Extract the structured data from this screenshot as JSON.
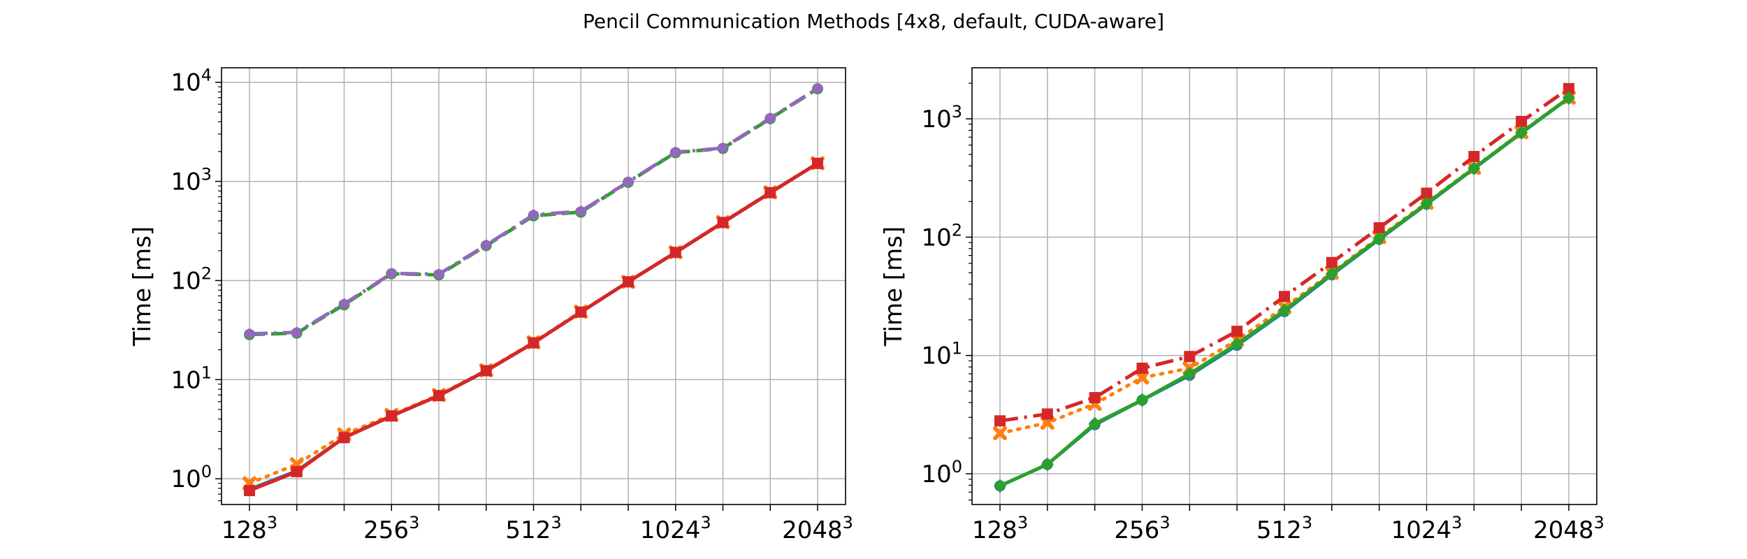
{
  "figure": {
    "title": "Pencil Communication Methods [4x8, default, CUDA-aware]"
  },
  "colors": {
    "blue": "#1f77b4",
    "orange": "#ff7f0e",
    "green": "#2ca02c",
    "red": "#d62728",
    "purple": "#9467bd",
    "grid": "#b0b0b0"
  },
  "chart_data": [
    {
      "type": "line",
      "title": "",
      "xlabel": "",
      "ylabel": "Time [ms]",
      "yscale": "log",
      "ylim": [
        0.55,
        14000
      ],
      "grid": true,
      "x_tick_labels": [
        {
          "base": "128",
          "exp": "3"
        },
        {
          "base": "256",
          "exp": "3"
        },
        {
          "base": "512",
          "exp": "3"
        },
        {
          "base": "1024",
          "exp": "3"
        },
        {
          "base": "2048",
          "exp": "3"
        }
      ],
      "y_tick_labels": [
        {
          "base": "10",
          "exp": "0"
        },
        {
          "base": "10",
          "exp": "1"
        },
        {
          "base": "10",
          "exp": "2"
        },
        {
          "base": "10",
          "exp": "3"
        },
        {
          "base": "10",
          "exp": "4"
        }
      ],
      "y_ticks": [
        1,
        10,
        100,
        1000,
        10000
      ],
      "x_ticks": [
        0,
        3,
        6,
        9,
        12
      ],
      "x": [
        0,
        1,
        2,
        3,
        4,
        5,
        6,
        7,
        8,
        9,
        10,
        11,
        12
      ],
      "series": [
        {
          "color": "blue",
          "dash": "solid",
          "marker": "circle",
          "values": [
            0.78,
            1.2,
            2.6,
            4.3,
            6.9,
            12.3,
            23.5,
            48,
            97,
            192,
            385,
            770,
            1520
          ]
        },
        {
          "color": "orange",
          "dash": "dotted",
          "marker": "x",
          "values": [
            0.9,
            1.4,
            2.8,
            4.4,
            7.0,
            12.4,
            23.8,
            48.5,
            97,
            193,
            388,
            775,
            1525
          ]
        },
        {
          "color": "green",
          "dash": "dashed",
          "marker": "circle",
          "values": [
            28.5,
            29.5,
            57,
            117,
            114,
            225,
            450,
            490,
            980,
            1950,
            2150,
            4300,
            8600
          ]
        },
        {
          "color": "purple",
          "dash": "dashdot",
          "marker": "hexagon",
          "values": [
            29,
            30,
            58,
            118,
            116,
            228,
            460,
            500,
            990,
            1970,
            2170,
            4350,
            8700
          ]
        },
        {
          "color": "red",
          "dash": "solid",
          "marker": "square",
          "values": [
            0.76,
            1.18,
            2.6,
            4.3,
            6.9,
            12.3,
            23.5,
            48,
            97,
            192,
            385,
            770,
            1520
          ]
        }
      ]
    },
    {
      "type": "line",
      "title": "",
      "xlabel": "",
      "ylabel": "Time [ms]",
      "yscale": "log",
      "ylim": [
        0.55,
        2700
      ],
      "grid": true,
      "x_tick_labels": [
        {
          "base": "128",
          "exp": "3"
        },
        {
          "base": "256",
          "exp": "3"
        },
        {
          "base": "512",
          "exp": "3"
        },
        {
          "base": "1024",
          "exp": "3"
        },
        {
          "base": "2048",
          "exp": "3"
        }
      ],
      "y_tick_labels": [
        {
          "base": "10",
          "exp": "0"
        },
        {
          "base": "10",
          "exp": "1"
        },
        {
          "base": "10",
          "exp": "2"
        },
        {
          "base": "10",
          "exp": "3"
        }
      ],
      "y_ticks": [
        1,
        10,
        100,
        1000
      ],
      "x_ticks": [
        0,
        3,
        6,
        9,
        12
      ],
      "x": [
        0,
        1,
        2,
        3,
        4,
        5,
        6,
        7,
        8,
        9,
        10,
        11,
        12
      ],
      "series": [
        {
          "color": "blue",
          "dash": "solid",
          "marker": "circle",
          "values": [
            0.79,
            1.2,
            2.6,
            4.2,
            6.8,
            12.2,
            23.5,
            48,
            96,
            190,
            380,
            760,
            1500
          ]
        },
        {
          "color": "orange",
          "dash": "dotted",
          "marker": "x",
          "values": [
            2.2,
            2.7,
            3.9,
            6.5,
            7.8,
            13.5,
            25.5,
            50,
            100,
            195,
            385,
            770,
            1510
          ]
        },
        {
          "color": "red",
          "dash": "dashdot",
          "marker": "square",
          "values": [
            2.8,
            3.2,
            4.4,
            7.8,
            9.8,
            16,
            31.5,
            61,
            120,
            235,
            480,
            950,
            1800
          ]
        },
        {
          "color": "green",
          "dash": "solid",
          "marker": "diamond",
          "values": [
            0.79,
            1.2,
            2.65,
            4.2,
            7.0,
            12.5,
            24,
            49,
            97,
            192,
            382,
            765,
            1500
          ]
        }
      ]
    }
  ]
}
